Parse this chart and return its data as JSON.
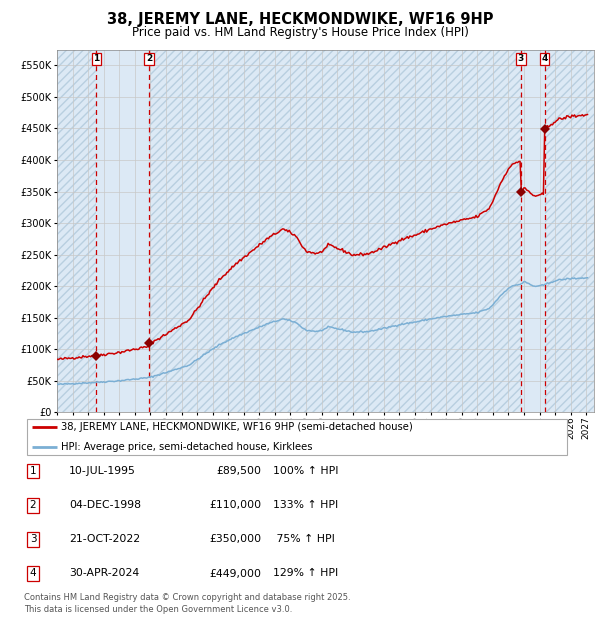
{
  "title": "38, JEREMY LANE, HECKMONDWIKE, WF16 9HP",
  "subtitle": "Price paid vs. HM Land Registry's House Price Index (HPI)",
  "property_label": "38, JEREMY LANE, HECKMONDWIKE, WF16 9HP (semi-detached house)",
  "hpi_label": "HPI: Average price, semi-detached house, Kirklees",
  "footer": "Contains HM Land Registry data © Crown copyright and database right 2025.\nThis data is licensed under the Open Government Licence v3.0.",
  "trans_years": [
    1995.53,
    1998.92,
    2022.8,
    2024.33
  ],
  "trans_prices": [
    89500,
    110000,
    350000,
    449000
  ],
  "trans_nums": [
    1,
    2,
    3,
    4
  ],
  "trans_dates": [
    "10-JUL-1995",
    "04-DEC-1998",
    "21-OCT-2022",
    "30-APR-2024"
  ],
  "trans_price_str": [
    "£89,500",
    "£110,000",
    "£350,000",
    "£449,000"
  ],
  "trans_pct_str": [
    "100% ↑ HPI",
    "133% ↑ HPI",
    " 75% ↑ HPI",
    "129% ↑ HPI"
  ],
  "red_line_color": "#cc0000",
  "blue_line_color": "#7bafd4",
  "dot_color": "#8b0000",
  "vline_color": "#cc0000",
  "owned_shade": "#dce9f5",
  "hatch_shade": "#dce9f5",
  "hatch_edge": "#b8cfe0",
  "grid_color": "#c8c8c8",
  "ylim": [
    0,
    575000
  ],
  "xlim_start": 1993.0,
  "xlim_end": 2027.5,
  "yticks": [
    0,
    50000,
    100000,
    150000,
    200000,
    250000,
    300000,
    350000,
    400000,
    450000,
    500000,
    550000
  ]
}
